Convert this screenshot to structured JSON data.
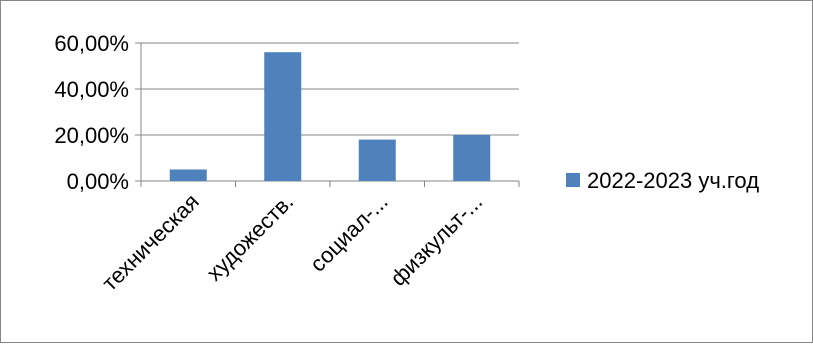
{
  "chart_data": {
    "type": "bar",
    "categories": [
      "техническая",
      "художеств.",
      "социал-...",
      "физкульт-..."
    ],
    "series": [
      {
        "name": "2022-2023 уч.год",
        "values": [
          5.0,
          56.0,
          18.0,
          20.0
        ],
        "color": "#4F81BD"
      }
    ],
    "yticks": [
      "0,00%",
      "20,00%",
      "40,00%",
      "60,00%"
    ],
    "ylim": [
      0,
      60
    ],
    "grid": true,
    "legend_position": "right",
    "title": "",
    "xlabel": "",
    "ylabel": ""
  }
}
